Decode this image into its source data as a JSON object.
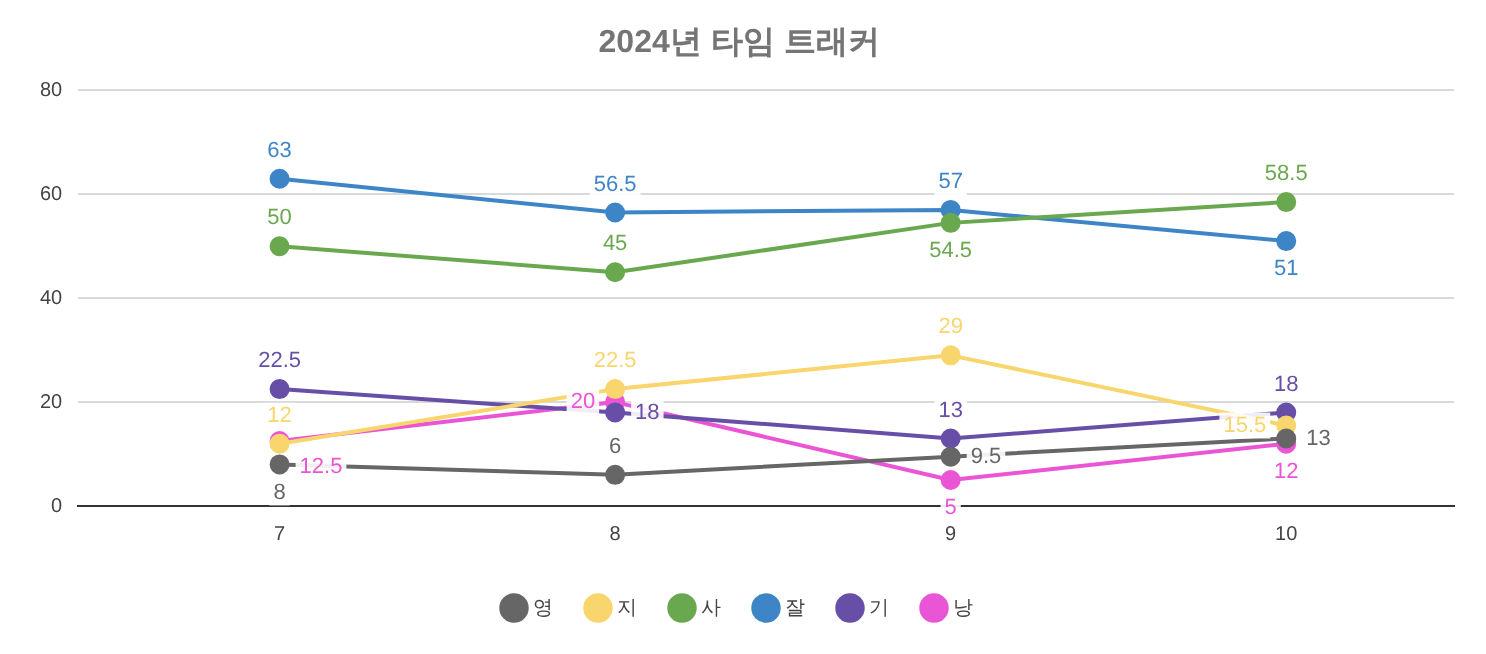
{
  "chart_data": {
    "type": "line",
    "title": "2024년 타임 트래커",
    "x": [
      7,
      8,
      9,
      10
    ],
    "xlim": [
      6.4,
      10.5
    ],
    "xticks": [
      7,
      8,
      9,
      10
    ],
    "ylim": [
      0,
      80
    ],
    "yticks": [
      0,
      20,
      40,
      60,
      80
    ],
    "grid": "y",
    "legend": "bottom",
    "marker": "circle",
    "data_labels": true,
    "series": [
      {
        "name": "영",
        "color": "#666666",
        "values": [
          8,
          6,
          9.5,
          13
        ]
      },
      {
        "name": "지",
        "color": "#f9d56e",
        "values": [
          12,
          22.5,
          29,
          15.5
        ]
      },
      {
        "name": "사",
        "color": "#6aa84f",
        "values": [
          50,
          45,
          54.5,
          58.5
        ]
      },
      {
        "name": "잘",
        "color": "#3d85c6",
        "values": [
          63,
          56.5,
          57,
          51
        ]
      },
      {
        "name": "기",
        "color": "#674ea7",
        "values": [
          22.5,
          18,
          13,
          18
        ]
      },
      {
        "name": "낭",
        "color": "#ea55d6",
        "values": [
          12.5,
          20,
          5,
          12
        ]
      }
    ]
  }
}
